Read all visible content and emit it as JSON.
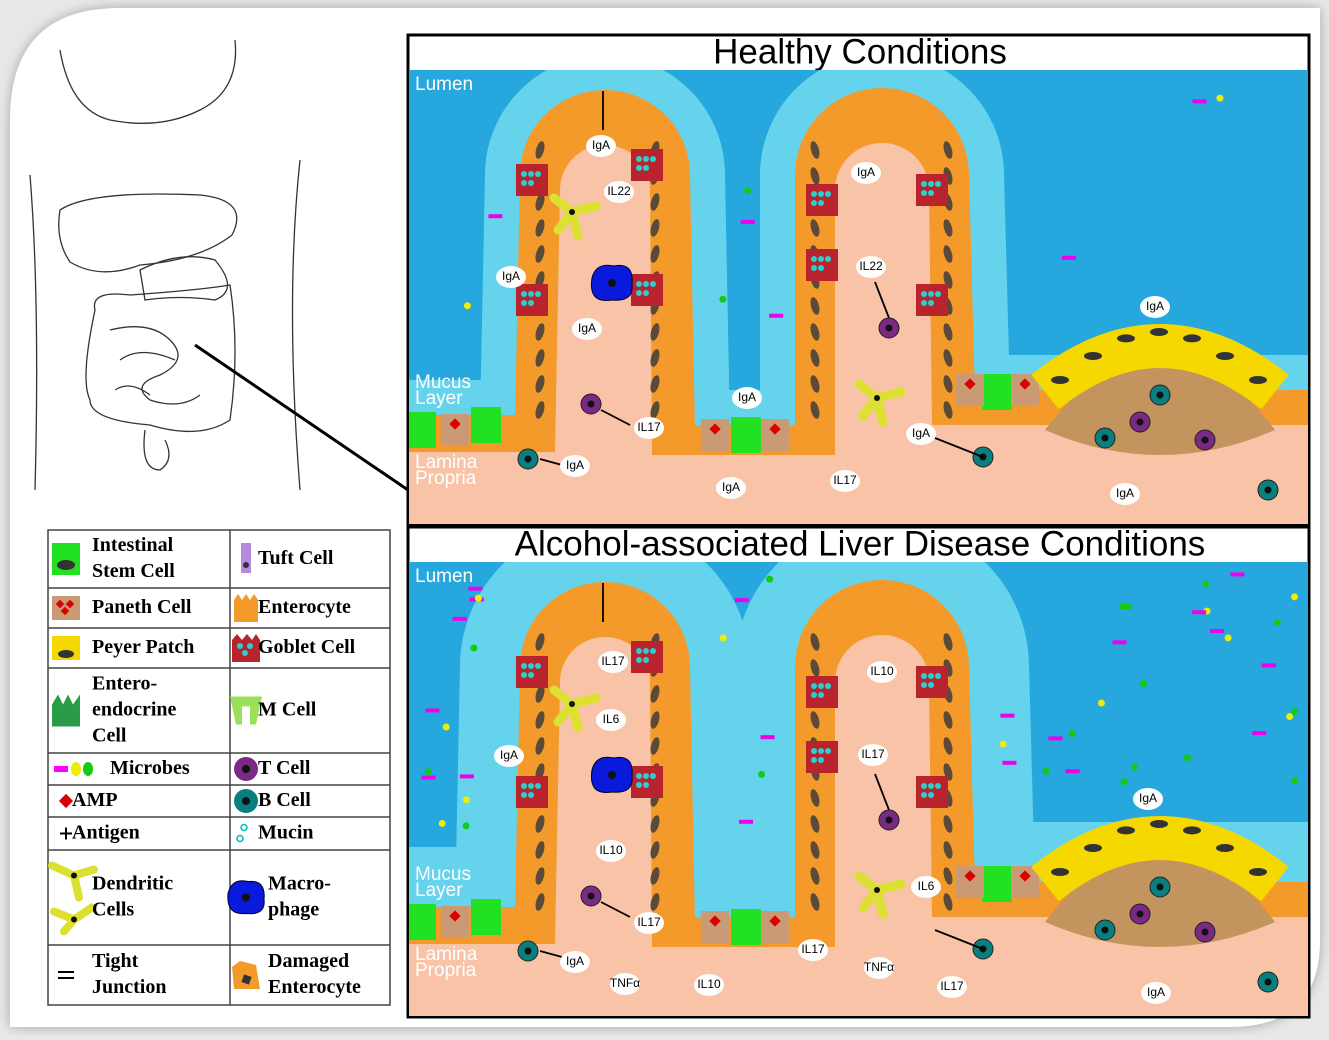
{
  "panels": [
    {
      "title": "Healthy Conditions",
      "lumen": "Lumen",
      "mucus_layer": [
        "Mucus",
        "Layer"
      ],
      "lamina_propria": [
        "Lamina",
        "Propria"
      ],
      "labels": [
        "IgA",
        "IL22",
        "IgA",
        "IgA",
        "IgA",
        "IL22",
        "IgA",
        "IgA",
        "IL17",
        "IgA",
        "IgA",
        "IgA",
        "IL17",
        "IgA"
      ]
    },
    {
      "title": "Alcohol-associated Liver Disease Conditions",
      "lumen": "Lumen",
      "mucus_layer": [
        "Mucus",
        "Layer"
      ],
      "lamina_propria": [
        "Lamina",
        "Propria"
      ],
      "labels": [
        "IL17",
        "IL10",
        "IL6",
        "IgA",
        "IL17",
        "IgA",
        "IL10",
        "IL6",
        "IL17",
        "IL17",
        "TNFα",
        "IgA",
        "TNFα",
        "IL10",
        "IL17",
        "IgA"
      ]
    }
  ],
  "legend": [
    [
      "Intestinal",
      "Stem Cell"
    ],
    [
      "Tuft Cell"
    ],
    [
      "Paneth Cell"
    ],
    [
      "Enterocyte"
    ],
    [
      "Peyer Patch"
    ],
    [
      "Goblet Cell"
    ],
    [
      "Entero-",
      "endocrine",
      "Cell"
    ],
    [
      "M Cell"
    ],
    [
      "Microbes"
    ],
    [
      "T Cell"
    ],
    [
      "AMP"
    ],
    [
      "B Cell"
    ],
    [
      "Antigen"
    ],
    [
      "Mucin"
    ],
    [
      "Dendritic",
      "Cells"
    ],
    [
      "Macro-",
      "phage"
    ],
    [
      "Tight",
      "Junction"
    ],
    [
      "Damaged",
      "Enterocyte"
    ]
  ]
}
